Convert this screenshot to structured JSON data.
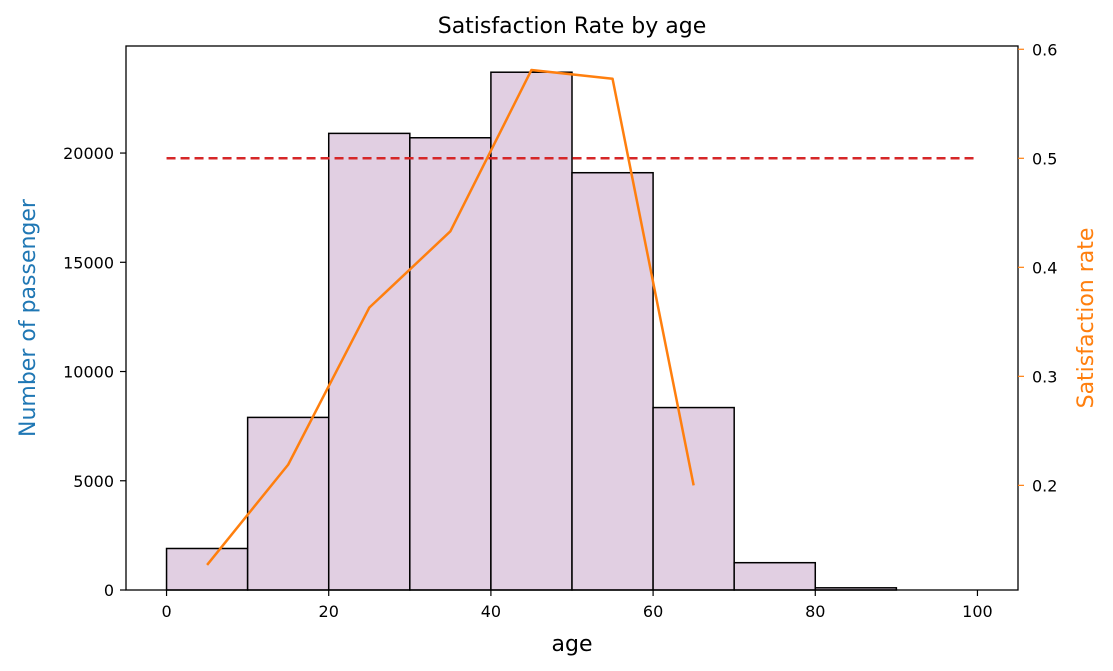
{
  "chart_data": {
    "type": "bar",
    "title": "Satisfaction Rate by age",
    "xlabel": "age",
    "ylabel": "Number of passenger",
    "y2label": "Satisfaction rate",
    "xlim": [
      -5,
      105
    ],
    "ylim": [
      0,
      24900
    ],
    "y2lim": [
      0.104,
      0.603
    ],
    "x_ticks": [
      0,
      20,
      40,
      60,
      80,
      100
    ],
    "y_ticks": [
      0,
      5000,
      10000,
      15000,
      20000
    ],
    "y2_ticks": [
      0.2,
      0.3,
      0.4,
      0.5,
      0.6
    ],
    "grid": false,
    "colors": {
      "bar_fill": "#e1cfe2",
      "bar_edge": "#000000",
      "left_axis_label": "#1f77b4",
      "right_axis_label": "#ff7f0e",
      "rate_line": "#ff7f0e",
      "threshold_line": "#d62728"
    },
    "histogram": {
      "name": "Number of passenger",
      "bins": [
        {
          "start": 0,
          "end": 10,
          "count": 1900
        },
        {
          "start": 10,
          "end": 20,
          "count": 7900
        },
        {
          "start": 20,
          "end": 30,
          "count": 20900
        },
        {
          "start": 30,
          "end": 40,
          "count": 20700
        },
        {
          "start": 40,
          "end": 50,
          "count": 23700
        },
        {
          "start": 50,
          "end": 60,
          "count": 19100
        },
        {
          "start": 60,
          "end": 70,
          "count": 8350
        },
        {
          "start": 70,
          "end": 80,
          "count": 1250
        },
        {
          "start": 80,
          "end": 90,
          "count": 100
        },
        {
          "start": 90,
          "end": 100,
          "count": 0
        }
      ]
    },
    "satisfaction_line": {
      "name": "Satisfaction rate",
      "x": [
        5,
        15,
        25,
        35,
        45,
        55,
        65
      ],
      "y": [
        0.127,
        0.219,
        0.363,
        0.433,
        0.581,
        0.573,
        0.2
      ]
    },
    "threshold_line": {
      "y": 0.5,
      "x_range": [
        0,
        100
      ],
      "style": "dashed"
    }
  }
}
